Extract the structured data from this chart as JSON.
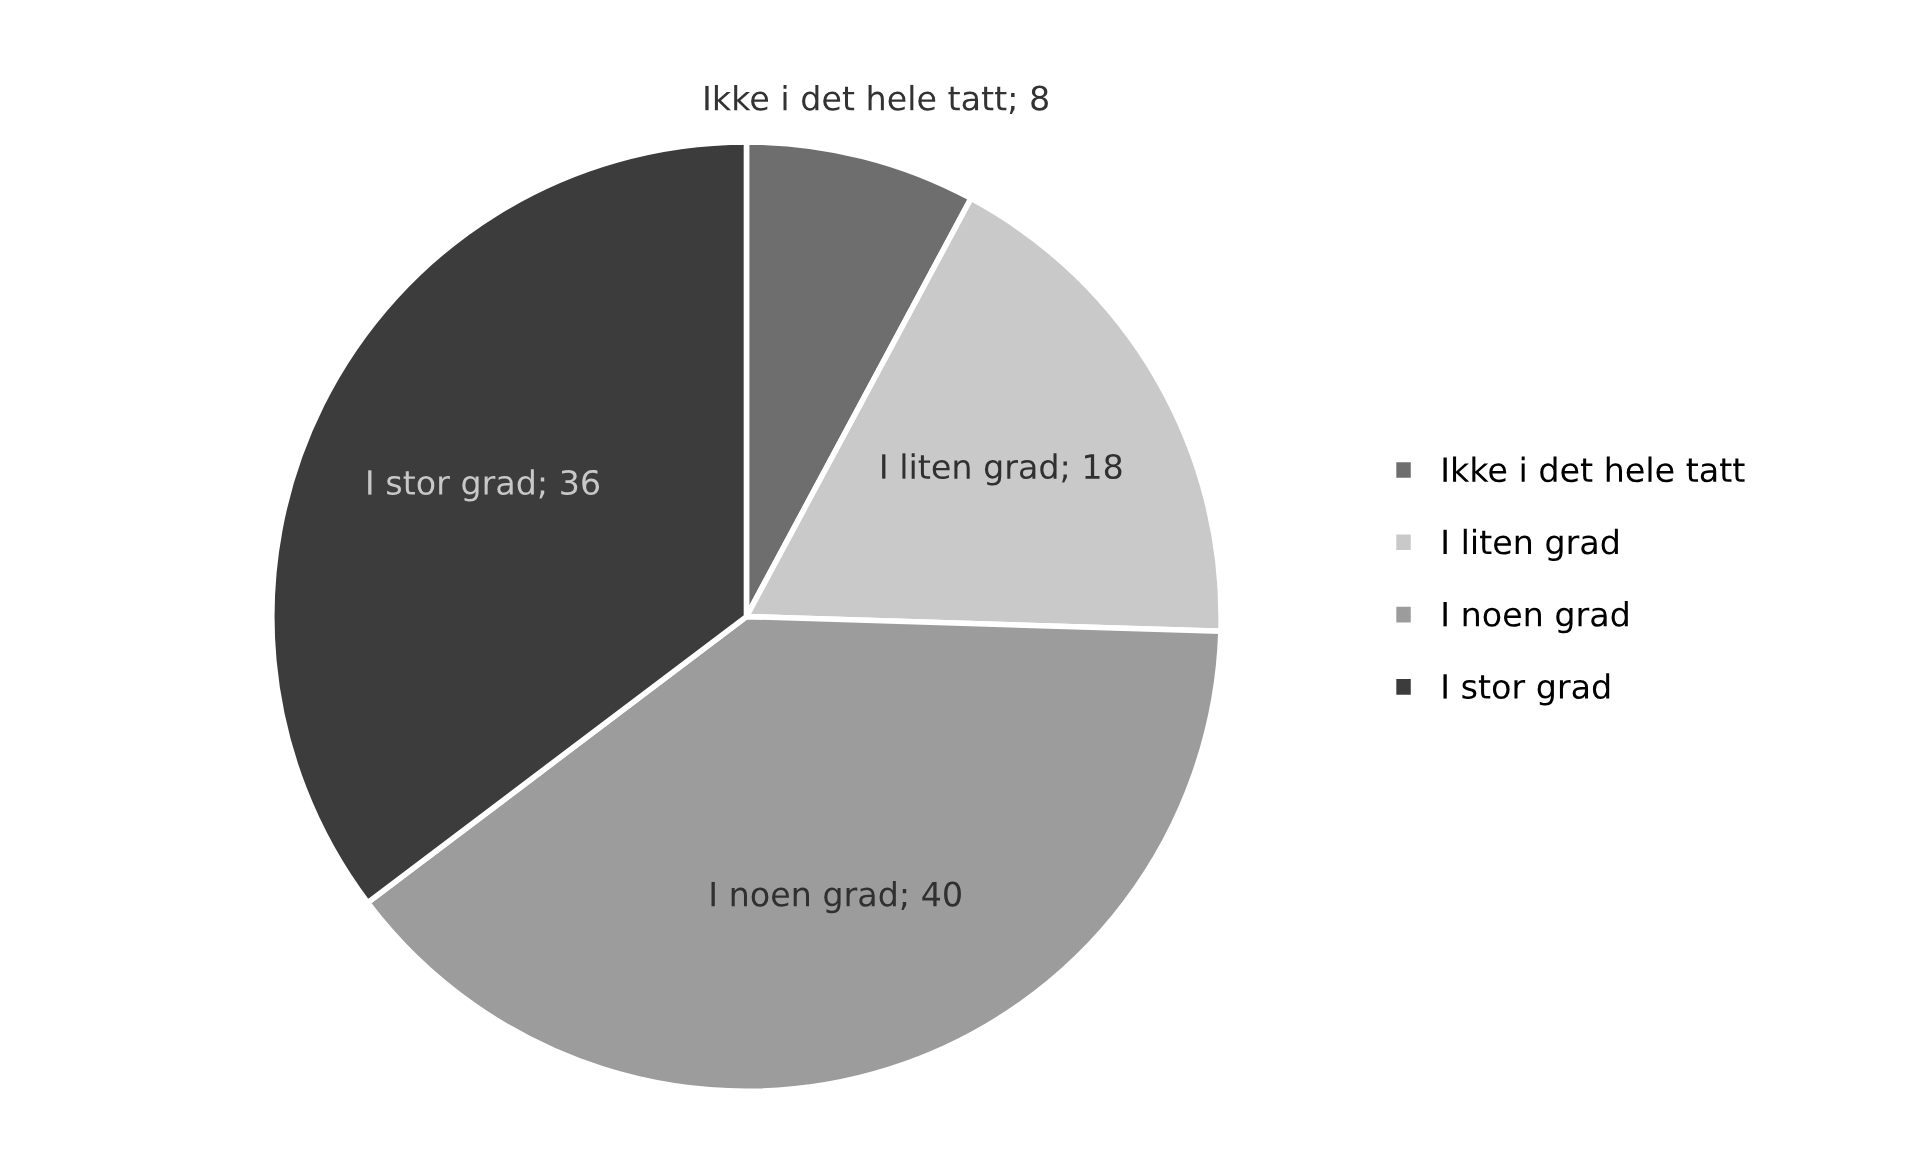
{
  "chart_data": {
    "type": "pie",
    "categories": [
      "Ikke i det hele tatt",
      "I liten grad",
      "I noen grad",
      "I stor grad"
    ],
    "values": [
      8,
      18,
      40,
      36
    ],
    "colors": [
      "#6e6e6e",
      "#c9c9c9",
      "#9c9c9c",
      "#3c3c3c"
    ],
    "value_labels": [
      "Ikke i det hele tatt; 8",
      "I liten grad; 18",
      "I noen grad; 40",
      "I stor grad; 36"
    ],
    "legend": "right"
  }
}
